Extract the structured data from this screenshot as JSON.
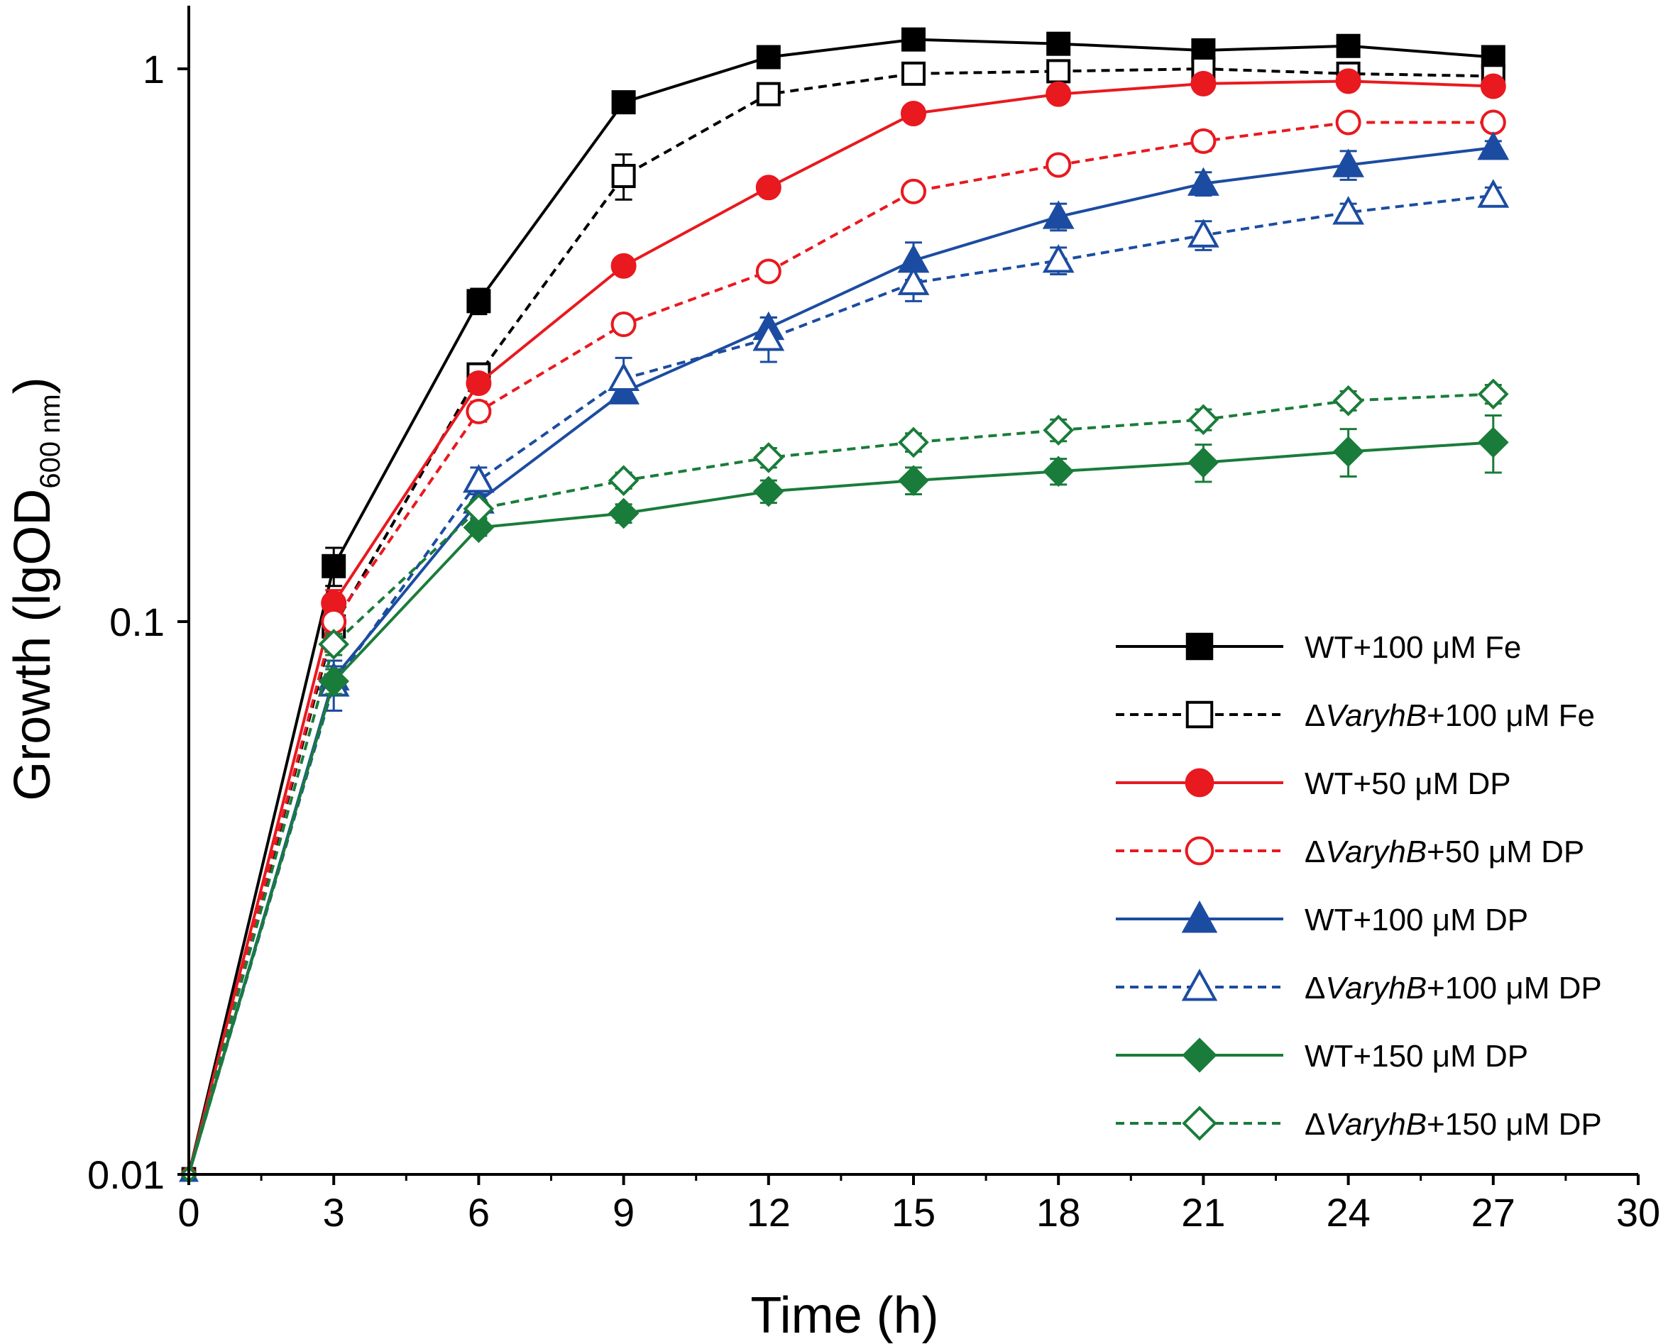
{
  "chart_data": {
    "type": "line",
    "title": "",
    "xlabel": "Time (h)",
    "ylabel_main": "Growth (lgOD",
    "ylabel_sub": "600 nm",
    "ylabel_close": ")",
    "xlim": [
      0,
      30
    ],
    "ylim": [
      0.01,
      1.3
    ],
    "yscale": "log",
    "grid": false,
    "legend_position": "bottom-right",
    "x_ticks": [
      0,
      3,
      6,
      9,
      12,
      15,
      18,
      21,
      24,
      27,
      30
    ],
    "x_tick_labels": [
      "0",
      "3",
      "6",
      "9",
      "12",
      "15",
      "18",
      "21",
      "24",
      "27",
      "30"
    ],
    "y_ticks": [
      0.01,
      0.1,
      1
    ],
    "y_tick_labels": [
      "0.01",
      "0.1",
      "1"
    ],
    "x": [
      0,
      3,
      6,
      9,
      12,
      15,
      18,
      21,
      24,
      27
    ],
    "series": [
      {
        "name": "WT+100 μM Fe",
        "prefix": "",
        "italic": "",
        "suffix": "WT+100 μM Fe",
        "color": "#000000",
        "marker": "square",
        "filled": true,
        "dashed": false,
        "values": [
          0.01,
          0.126,
          0.38,
          0.87,
          1.05,
          1.13,
          1.11,
          1.08,
          1.1,
          1.05
        ],
        "errors": [
          0,
          0.01,
          0.02,
          0.02,
          0.03,
          0.03,
          0.03,
          0.03,
          0.03,
          0.03
        ]
      },
      {
        "name": "ΔVaryhB+100 μM Fe",
        "prefix": "Δ",
        "italic": "VaryhB",
        "suffix": "+100 μM Fe",
        "color": "#000000",
        "marker": "square",
        "filled": false,
        "dashed": true,
        "values": [
          0.01,
          0.098,
          0.28,
          0.64,
          0.9,
          0.98,
          0.99,
          1.0,
          0.98,
          0.97
        ],
        "errors": [
          0,
          0.008,
          0.01,
          0.06,
          0.03,
          0.02,
          0.02,
          0.02,
          0.02,
          0.02
        ]
      },
      {
        "name": "WT+50 μM DP",
        "prefix": "",
        "italic": "",
        "suffix": "WT+50 μM DP",
        "color": "#e8191f",
        "marker": "circle",
        "filled": true,
        "dashed": false,
        "values": [
          0.01,
          0.108,
          0.27,
          0.44,
          0.61,
          0.83,
          0.9,
          0.94,
          0.95,
          0.93
        ],
        "errors": [
          0,
          0.006,
          0.01,
          0.01,
          0.01,
          0.02,
          0.02,
          0.02,
          0.02,
          0.02
        ]
      },
      {
        "name": "ΔVaryhB+50 μM DP",
        "prefix": "Δ",
        "italic": "VaryhB",
        "suffix": "+50 μM DP",
        "color": "#e8191f",
        "marker": "circle",
        "filled": false,
        "dashed": true,
        "values": [
          0.01,
          0.1,
          0.24,
          0.345,
          0.43,
          0.6,
          0.67,
          0.74,
          0.8,
          0.8
        ],
        "errors": [
          0,
          0.005,
          0.01,
          0.01,
          0.01,
          0.02,
          0.02,
          0.03,
          0.02,
          0.02
        ]
      },
      {
        "name": "WT+100 μM DP",
        "prefix": "",
        "italic": "",
        "suffix": "WT+100 μM DP",
        "color": "#1c4ca1",
        "marker": "triangle",
        "filled": true,
        "dashed": false,
        "values": [
          0.01,
          0.079,
          0.165,
          0.26,
          0.34,
          0.45,
          0.54,
          0.62,
          0.67,
          0.72
        ],
        "errors": [
          0,
          0.004,
          0.008,
          0.01,
          0.015,
          0.035,
          0.03,
          0.03,
          0.04,
          0.02
        ]
      },
      {
        "name": "ΔVaryhB+100 μM DP",
        "prefix": "Δ",
        "italic": "VaryhB",
        "suffix": "+100 μM DP",
        "color": "#1c4ca1",
        "marker": "triangle",
        "filled": false,
        "dashed": true,
        "values": [
          0.01,
          0.077,
          0.18,
          0.275,
          0.325,
          0.41,
          0.45,
          0.5,
          0.55,
          0.59
        ],
        "errors": [
          0,
          0.008,
          0.01,
          0.025,
          0.03,
          0.03,
          0.025,
          0.03,
          0.02,
          0.02
        ]
      },
      {
        "name": "WT+150 μM DP",
        "prefix": "",
        "italic": "",
        "suffix": "WT+150 μM DP",
        "color": "#1a7c3a",
        "marker": "diamond",
        "filled": true,
        "dashed": false,
        "values": [
          0.01,
          0.078,
          0.148,
          0.157,
          0.172,
          0.18,
          0.187,
          0.194,
          0.203,
          0.211
        ],
        "errors": [
          0,
          0.004,
          0.005,
          0.006,
          0.008,
          0.01,
          0.01,
          0.015,
          0.02,
          0.025
        ]
      },
      {
        "name": "ΔVaryhB+150 μM DP",
        "prefix": "Δ",
        "italic": "VaryhB",
        "suffix": "+150 μM DP",
        "color": "#1a7c3a",
        "marker": "diamond",
        "filled": false,
        "dashed": true,
        "values": [
          0.01,
          0.091,
          0.16,
          0.18,
          0.198,
          0.211,
          0.222,
          0.232,
          0.251,
          0.258
        ],
        "errors": [
          0,
          0.004,
          0.006,
          0.006,
          0.008,
          0.008,
          0.01,
          0.01,
          0.01,
          0.01
        ]
      }
    ]
  }
}
